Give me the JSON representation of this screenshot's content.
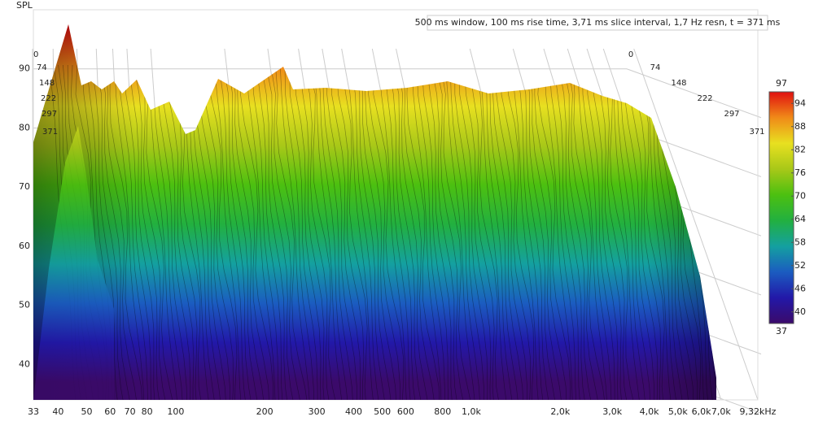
{
  "chart_data": {
    "type": "waterfall",
    "y_label": "SPL",
    "annotation": "500 ms window, 100 ms rise time, 3,71 ms slice interval, 1,7 Hz resn, t = 371 ms",
    "x_scale": "log",
    "xlim": [
      33,
      9320
    ],
    "xticks": [
      33,
      40,
      50,
      60,
      70,
      80,
      100,
      200,
      300,
      400,
      500,
      600,
      800,
      {
        "value": 1000,
        "label": "1,0k"
      },
      {
        "value": 2000,
        "label": "2,0k"
      },
      {
        "value": 3000,
        "label": "3,0k"
      },
      {
        "value": 4000,
        "label": "4,0k"
      },
      {
        "value": 5000,
        "label": "5,0k"
      },
      {
        "value": 6000,
        "label": "6,0k"
      },
      {
        "value": 7000,
        "label": "7,0k"
      },
      {
        "value": 9320,
        "label": "9,32kHz"
      }
    ],
    "ylim": [
      34,
      100
    ],
    "yticks": [
      40,
      50,
      60,
      70,
      80,
      90
    ],
    "time_slices": [
      0,
      74,
      148,
      222,
      297,
      371
    ],
    "zlim": [
      37,
      97
    ],
    "zticks": [
      37,
      40,
      46,
      52,
      58,
      64,
      70,
      76,
      82,
      88,
      94,
      97
    ],
    "colormap": [
      "#3b0a6a",
      "#2218a8",
      "#1b5cc0",
      "#14a0a0",
      "#22b040",
      "#4cc010",
      "#a8c818",
      "#e8e020",
      "#f08a18",
      "#e01010"
    ],
    "grid": true
  }
}
